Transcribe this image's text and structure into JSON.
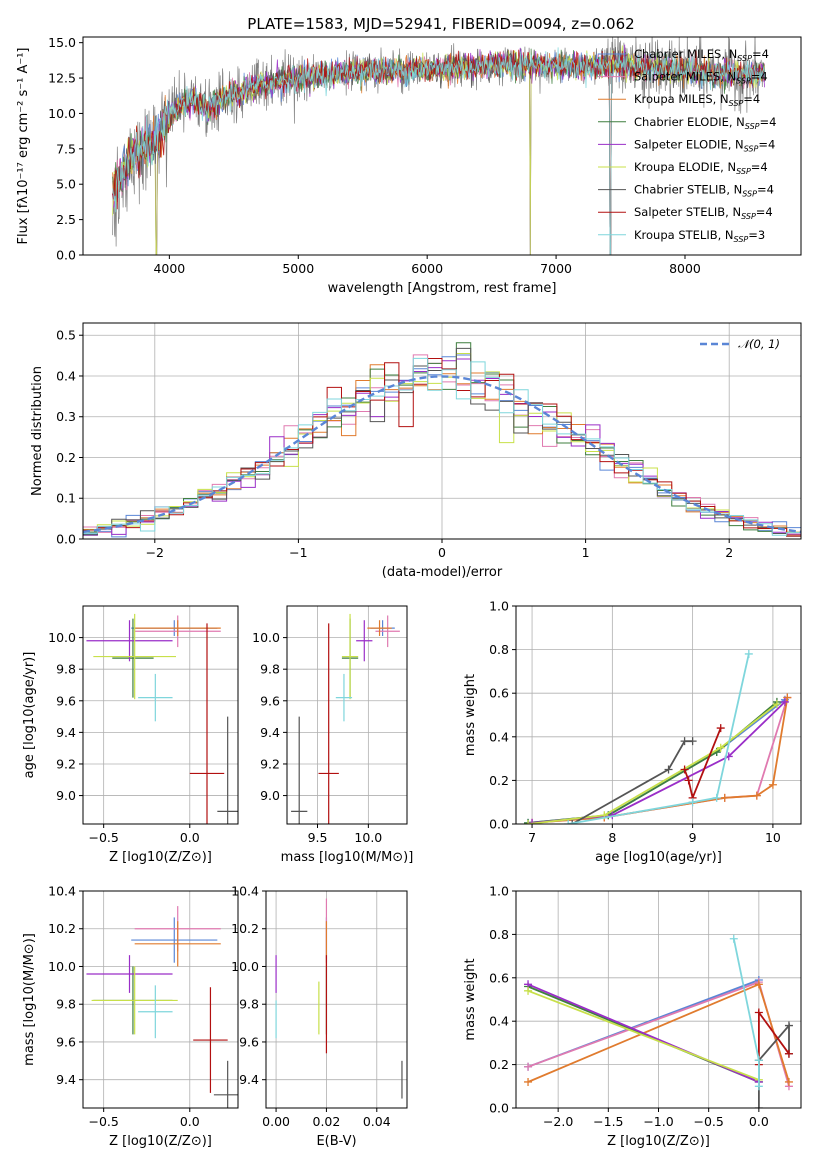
{
  "figure_title": "PLATE=1583, MJD=52941, FIBERID=0094, z=0.062",
  "colors": {
    "Chabrier MILES": "#5a86d6",
    "Salpeter MILES": "#e07ab0",
    "Kroupa MILES": "#e07b2e",
    "Chabrier ELODIE": "#3f7f3f",
    "Salpeter ELODIE": "#9a2ec8",
    "Kroupa ELODIE": "#c8e04a",
    "Chabrier STELIB": "#555555",
    "Salpeter STELIB": "#b21010",
    "Kroupa STELIB": "#7fd6dc",
    "data": "#808080"
  },
  "chart_data": [
    {
      "id": "spectrum",
      "type": "line",
      "xlabel": "wavelength [Angstrom, rest frame]",
      "ylabel": "Flux [fλ10⁻¹⁷ erg cm⁻² s⁻¹ A⁻¹]",
      "xlim": [
        3330,
        8900
      ],
      "ylim": [
        0,
        15.4
      ],
      "xticks": [
        4000,
        5000,
        6000,
        7000,
        8000
      ],
      "yticks": [
        0.0,
        2.5,
        5.0,
        7.5,
        10.0,
        12.5,
        15.0
      ],
      "ytick_labels": [
        "0.0",
        "2.5",
        "5.0",
        "7.5",
        "10.0",
        "12.5",
        "15.0"
      ],
      "grid": false,
      "legend": "upper right",
      "legend_entries": [
        "Chabrier MILES, N_SSP=4",
        "Salpeter MILES, N_SSP=4",
        "Kroupa MILES, N_SSP=4",
        "Chabrier ELODIE, N_SSP=4",
        "Salpeter ELODIE, N_SSP=4",
        "Kroupa ELODIE, N_SSP=4",
        "Chabrier STELIB, N_SSP=4",
        "Salpeter STELIB, N_SSP=4",
        "Kroupa STELIB, N_SSP=3"
      ],
      "continuum": {
        "x": [
          3560,
          3700,
          3800,
          3900,
          4000,
          4100,
          4200,
          4300,
          4400,
          4500,
          4700,
          4900,
          5100,
          5300,
          5500,
          5800,
          6100,
          6400,
          6700,
          7000,
          7300,
          7500,
          7700,
          8000,
          8300,
          8620
        ],
        "y": [
          4.5,
          6.8,
          7.5,
          8.0,
          9.8,
          10.6,
          11.0,
          10.2,
          11.0,
          11.4,
          12.0,
          12.4,
          12.6,
          12.8,
          13.0,
          13.0,
          13.2,
          13.3,
          13.5,
          13.4,
          13.3,
          13.5,
          13.2,
          13.0,
          12.8,
          12.7
        ]
      },
      "notes": [
        "model cutoffs near 3880 A, 6800 A and 7420 A drop to 0"
      ]
    },
    {
      "id": "residuals",
      "type": "histogram",
      "xlabel": "(data-model)/error",
      "ylabel": "Normed distribution",
      "xlim": [
        -2.5,
        2.5
      ],
      "ylim": [
        0,
        0.53
      ],
      "xticks": [
        -2,
        -1,
        0,
        1,
        2
      ],
      "xtick_labels": [
        "−2",
        "−1",
        "0",
        "1",
        "2"
      ],
      "yticks": [
        0.0,
        0.1,
        0.2,
        0.3,
        0.4,
        0.5
      ],
      "ytick_labels": [
        "0.0",
        "0.1",
        "0.2",
        "0.3",
        "0.4",
        "0.5"
      ],
      "grid": true,
      "legend": "upper right",
      "legend_entries": [
        "𝒩(0, 1)"
      ],
      "bin_width": 0.1,
      "reference_curve": "normal(0,1)"
    },
    {
      "id": "age_vs_Z",
      "type": "errorbar",
      "xlabel": "Z [log10(Z/Z⊙)]",
      "ylabel": "age  [log10(age/yr)]",
      "xlim": [
        -0.62,
        0.28
      ],
      "ylim": [
        8.82,
        10.2
      ],
      "xticks": [
        -0.5,
        0.0
      ],
      "xtick_labels": [
        "−0.5",
        "0.0"
      ],
      "yticks": [
        9.0,
        9.2,
        9.4,
        9.6,
        9.8,
        10.0
      ],
      "ytick_labels": [
        "9.0",
        "9.2",
        "9.4",
        "9.6",
        "9.8",
        "10.0"
      ],
      "grid": true,
      "points": [
        {
          "model": "Chabrier MILES",
          "x": -0.09,
          "y": 10.06,
          "xerr": 0.25,
          "yerr": 0.05
        },
        {
          "model": "Salpeter MILES",
          "x": -0.07,
          "y": 10.04,
          "xerr": 0.25,
          "yerr": 0.1
        },
        {
          "model": "Kroupa MILES",
          "x": -0.07,
          "y": 10.06,
          "xerr": 0.25,
          "yerr": 0.05
        },
        {
          "model": "Chabrier ELODIE",
          "x": -0.33,
          "y": 9.87,
          "xerr": 0.12,
          "yerr": 0.25
        },
        {
          "model": "Salpeter ELODIE",
          "x": -0.35,
          "y": 9.98,
          "xerr": 0.25,
          "yerr": 0.13
        },
        {
          "model": "Kroupa ELODIE",
          "x": -0.32,
          "y": 9.88,
          "xerr": 0.24,
          "yerr": 0.27
        },
        {
          "model": "Chabrier STELIB",
          "x": 0.22,
          "y": 8.9,
          "xerr": 0.06,
          "yerr": 0.6
        },
        {
          "model": "Salpeter STELIB",
          "x": 0.1,
          "y": 9.14,
          "xerr": 0.1,
          "yerr": 0.95
        },
        {
          "model": "Kroupa STELIB",
          "x": -0.2,
          "y": 9.62,
          "xerr": 0.1,
          "yerr": 0.15
        }
      ]
    },
    {
      "id": "age_vs_mass",
      "type": "errorbar",
      "xlabel": "mass [log10(M/M⊙)]",
      "ylabel": "",
      "xlim": [
        9.2,
        10.38
      ],
      "ylim": [
        8.82,
        10.2
      ],
      "xticks": [
        9.5,
        10.0
      ],
      "xtick_labels": [
        "9.5",
        "10.0"
      ],
      "yticks": [
        9.0,
        9.2,
        9.4,
        9.6,
        9.8,
        10.0
      ],
      "ytick_labels": [
        "9.0",
        "9.2",
        "9.4",
        "9.6",
        "9.8",
        "10.0"
      ],
      "grid": true,
      "points": [
        {
          "model": "Chabrier MILES",
          "x": 10.14,
          "y": 10.06,
          "xerr": 0.12,
          "yerr": 0.05
        },
        {
          "model": "Salpeter MILES",
          "x": 10.19,
          "y": 10.04,
          "xerr": 0.12,
          "yerr": 0.1
        },
        {
          "model": "Kroupa MILES",
          "x": 10.11,
          "y": 10.06,
          "xerr": 0.12,
          "yerr": 0.05
        },
        {
          "model": "Chabrier ELODIE",
          "x": 9.82,
          "y": 9.87,
          "xerr": 0.08,
          "yerr": 0.25
        },
        {
          "model": "Salpeter ELODIE",
          "x": 9.96,
          "y": 9.98,
          "xerr": 0.08,
          "yerr": 0.13
        },
        {
          "model": "Kroupa ELODIE",
          "x": 9.82,
          "y": 9.88,
          "xerr": 0.08,
          "yerr": 0.27
        },
        {
          "model": "Chabrier STELIB",
          "x": 9.32,
          "y": 8.9,
          "xerr": 0.08,
          "yerr": 0.6
        },
        {
          "model": "Salpeter STELIB",
          "x": 9.61,
          "y": 9.14,
          "xerr": 0.1,
          "yerr": 0.95
        },
        {
          "model": "Kroupa STELIB",
          "x": 9.76,
          "y": 9.62,
          "xerr": 0.08,
          "yerr": 0.15
        }
      ]
    },
    {
      "id": "weight_vs_age",
      "type": "line",
      "xlabel": "age  [log10(age/yr)]",
      "ylabel": "mass weight",
      "xlim": [
        6.8,
        10.35
      ],
      "ylim": [
        0,
        1.0
      ],
      "xticks": [
        7,
        8,
        9,
        10
      ],
      "xtick_labels": [
        "7",
        "8",
        "9",
        "10"
      ],
      "yticks": [
        0.0,
        0.2,
        0.4,
        0.6,
        0.8,
        1.0
      ],
      "ytick_labels": [
        "0.0",
        "0.2",
        "0.4",
        "0.6",
        "0.8",
        "1.0"
      ],
      "grid": true,
      "series": [
        {
          "name": "Chabrier MILES",
          "x": [
            6.95,
            7.95,
            9.3,
            10.15
          ],
          "y": [
            0.005,
            0.04,
            0.33,
            0.57
          ]
        },
        {
          "name": "Salpeter MILES",
          "x": [
            7.0,
            7.9,
            9.4,
            9.8,
            10.18
          ],
          "y": [
            0.005,
            0.03,
            0.12,
            0.13,
            0.58
          ]
        },
        {
          "name": "Kroupa MILES",
          "x": [
            7.0,
            7.9,
            9.4,
            9.8,
            10.0,
            10.18
          ],
          "y": [
            0.005,
            0.03,
            0.12,
            0.13,
            0.18,
            0.58
          ]
        },
        {
          "name": "Chabrier ELODIE",
          "x": [
            6.95,
            7.95,
            9.3,
            10.05
          ],
          "y": [
            0.005,
            0.04,
            0.33,
            0.56
          ]
        },
        {
          "name": "Salpeter ELODIE",
          "x": [
            7.0,
            8.0,
            9.45,
            10.15
          ],
          "y": [
            0.005,
            0.04,
            0.31,
            0.56
          ]
        },
        {
          "name": "Kroupa ELODIE",
          "x": [
            6.95,
            7.9,
            9.35,
            10.05
          ],
          "y": [
            0.0,
            0.04,
            0.35,
            0.55
          ]
        },
        {
          "name": "Chabrier STELIB",
          "x": [
            7.5,
            8.7,
            8.9,
            9.0
          ],
          "y": [
            0.0,
            0.25,
            0.38,
            0.38
          ]
        },
        {
          "name": "Salpeter STELIB",
          "x": [
            8.9,
            8.95,
            9.0,
            9.35
          ],
          "y": [
            0.25,
            0.2,
            0.12,
            0.44
          ]
        },
        {
          "name": "Kroupa STELIB",
          "x": [
            7.45,
            9.0,
            9.3,
            9.7
          ],
          "y": [
            0.0,
            0.1,
            0.12,
            0.78
          ]
        }
      ]
    },
    {
      "id": "mass_vs_Z",
      "type": "errorbar",
      "xlabel": "Z [log10(Z/Z⊙)]",
      "ylabel": "mass [log10(M/M⊙)]",
      "xlim": [
        -0.62,
        0.28
      ],
      "ylim": [
        9.25,
        10.4
      ],
      "xticks": [
        -0.5,
        0.0
      ],
      "xtick_labels": [
        "−0.5",
        "0.0"
      ],
      "yticks": [
        9.4,
        9.6,
        9.8,
        10.0,
        10.2,
        10.4
      ],
      "ytick_labels": [
        "9.4",
        "9.6",
        "9.8",
        "10.0",
        "10.2",
        "10.4"
      ],
      "grid": true,
      "points": [
        {
          "model": "Chabrier MILES",
          "x": -0.09,
          "y": 10.14,
          "xerr": 0.25,
          "yerr": 0.12
        },
        {
          "model": "Salpeter MILES",
          "x": -0.07,
          "y": 10.2,
          "xerr": 0.25,
          "yerr": 0.12
        },
        {
          "model": "Kroupa MILES",
          "x": -0.07,
          "y": 10.12,
          "xerr": 0.25,
          "yerr": 0.12
        },
        {
          "model": "Chabrier ELODIE",
          "x": -0.33,
          "y": 9.82,
          "xerr": 0.23,
          "yerr": 0.18
        },
        {
          "model": "Salpeter ELODIE",
          "x": -0.35,
          "y": 9.96,
          "xerr": 0.25,
          "yerr": 0.1
        },
        {
          "model": "Kroupa ELODIE",
          "x": -0.32,
          "y": 9.82,
          "xerr": 0.25,
          "yerr": 0.18
        },
        {
          "model": "Chabrier STELIB",
          "x": 0.22,
          "y": 9.32,
          "xerr": 0.08,
          "yerr": 0.18
        },
        {
          "model": "Salpeter STELIB",
          "x": 0.12,
          "y": 9.61,
          "xerr": 0.1,
          "yerr": 0.28
        },
        {
          "model": "Kroupa STELIB",
          "x": -0.2,
          "y": 9.76,
          "xerr": 0.1,
          "yerr": 0.14
        }
      ]
    },
    {
      "id": "mass_vs_EBV",
      "type": "errorbar",
      "xlabel": "E(B-V)",
      "ylabel": "",
      "xlim": [
        -0.004,
        0.052
      ],
      "ylim": [
        9.25,
        10.4
      ],
      "xticks": [
        0.0,
        0.02,
        0.04
      ],
      "xtick_labels": [
        "0.00",
        "0.02",
        "0.04"
      ],
      "yticks": [
        9.4,
        9.6,
        9.8,
        10.0,
        10.2,
        10.4
      ],
      "ytick_labels": [
        "9.4",
        "9.6",
        "9.8",
        "10.0",
        "10.2",
        "10.4"
      ],
      "grid": true,
      "points": [
        {
          "model": "Chabrier MILES",
          "x": 0.02,
          "y": 10.14,
          "xerr": 0,
          "yerr": 0.12
        },
        {
          "model": "Salpeter MILES",
          "x": 0.02,
          "y": 10.2,
          "xerr": 0,
          "yerr": 0.16
        },
        {
          "model": "Kroupa MILES",
          "x": 0.02,
          "y": 10.12,
          "xerr": 0,
          "yerr": 0.12
        },
        {
          "model": "Chabrier ELODIE",
          "x": 0.02,
          "y": 9.82,
          "xerr": 0,
          "yerr": 0.18
        },
        {
          "model": "Salpeter ELODIE",
          "x": 0.0,
          "y": 9.96,
          "xerr": 0,
          "yerr": 0.1
        },
        {
          "model": "Kroupa ELODIE",
          "x": 0.017,
          "y": 9.78,
          "xerr": 0,
          "yerr": 0.14
        },
        {
          "model": "Chabrier STELIB",
          "x": 0.05,
          "y": 9.4,
          "xerr": 0,
          "yerr": 0.1
        },
        {
          "model": "Salpeter STELIB",
          "x": 0.02,
          "y": 9.8,
          "xerr": 0,
          "yerr": 0.26
        },
        {
          "model": "Kroupa STELIB",
          "x": 0.0,
          "y": 9.72,
          "xerr": 0,
          "yerr": 0.1
        }
      ]
    },
    {
      "id": "weight_vs_Z",
      "type": "line",
      "xlabel": "Z [log10(Z/Z⊙)]",
      "ylabel": "mass weight",
      "xlim": [
        -2.42,
        0.42
      ],
      "ylim": [
        0,
        1.0
      ],
      "xticks": [
        -2.0,
        -1.5,
        -1.0,
        -0.5,
        0.0
      ],
      "xtick_labels": [
        "−2.0",
        "−1.5",
        "−1.0",
        "−0.5",
        "0.0"
      ],
      "yticks": [
        0.0,
        0.2,
        0.4,
        0.6,
        0.8,
        1.0
      ],
      "ytick_labels": [
        "0.0",
        "0.2",
        "0.4",
        "0.6",
        "0.8",
        "1.0"
      ],
      "grid": true,
      "series": [
        {
          "name": "Chabrier MILES",
          "x": [
            -2.3,
            0.0
          ],
          "y": [
            0.19,
            0.59
          ]
        },
        {
          "name": "Salpeter MILES",
          "x": [
            -2.3,
            0.0,
            0.3
          ],
          "y": [
            0.19,
            0.58,
            0.1
          ]
        },
        {
          "name": "Kroupa MILES",
          "x": [
            -2.3,
            0.0,
            0.3
          ],
          "y": [
            0.12,
            0.57,
            0.12
          ]
        },
        {
          "name": "Chabrier ELODIE",
          "x": [
            -2.3,
            0.0
          ],
          "y": [
            0.56,
            0.12
          ]
        },
        {
          "name": "Salpeter ELODIE",
          "x": [
            -2.3,
            0.0
          ],
          "y": [
            0.57,
            0.12
          ]
        },
        {
          "name": "Kroupa ELODIE",
          "x": [
            -2.3,
            0.0
          ],
          "y": [
            0.54,
            0.13
          ]
        },
        {
          "name": "Chabrier STELIB",
          "x": [
            0.0,
            0.0,
            0.3,
            0.3
          ],
          "y": [
            0.0,
            0.22,
            0.38,
            0.25
          ]
        },
        {
          "name": "Salpeter STELIB",
          "x": [
            0.0,
            0.0,
            0.3
          ],
          "y": [
            0.2,
            0.44,
            0.25
          ]
        },
        {
          "name": "Kroupa STELIB",
          "x": [
            -0.25,
            0.0,
            0.0
          ],
          "y": [
            0.78,
            0.22,
            0.1
          ]
        }
      ]
    }
  ]
}
